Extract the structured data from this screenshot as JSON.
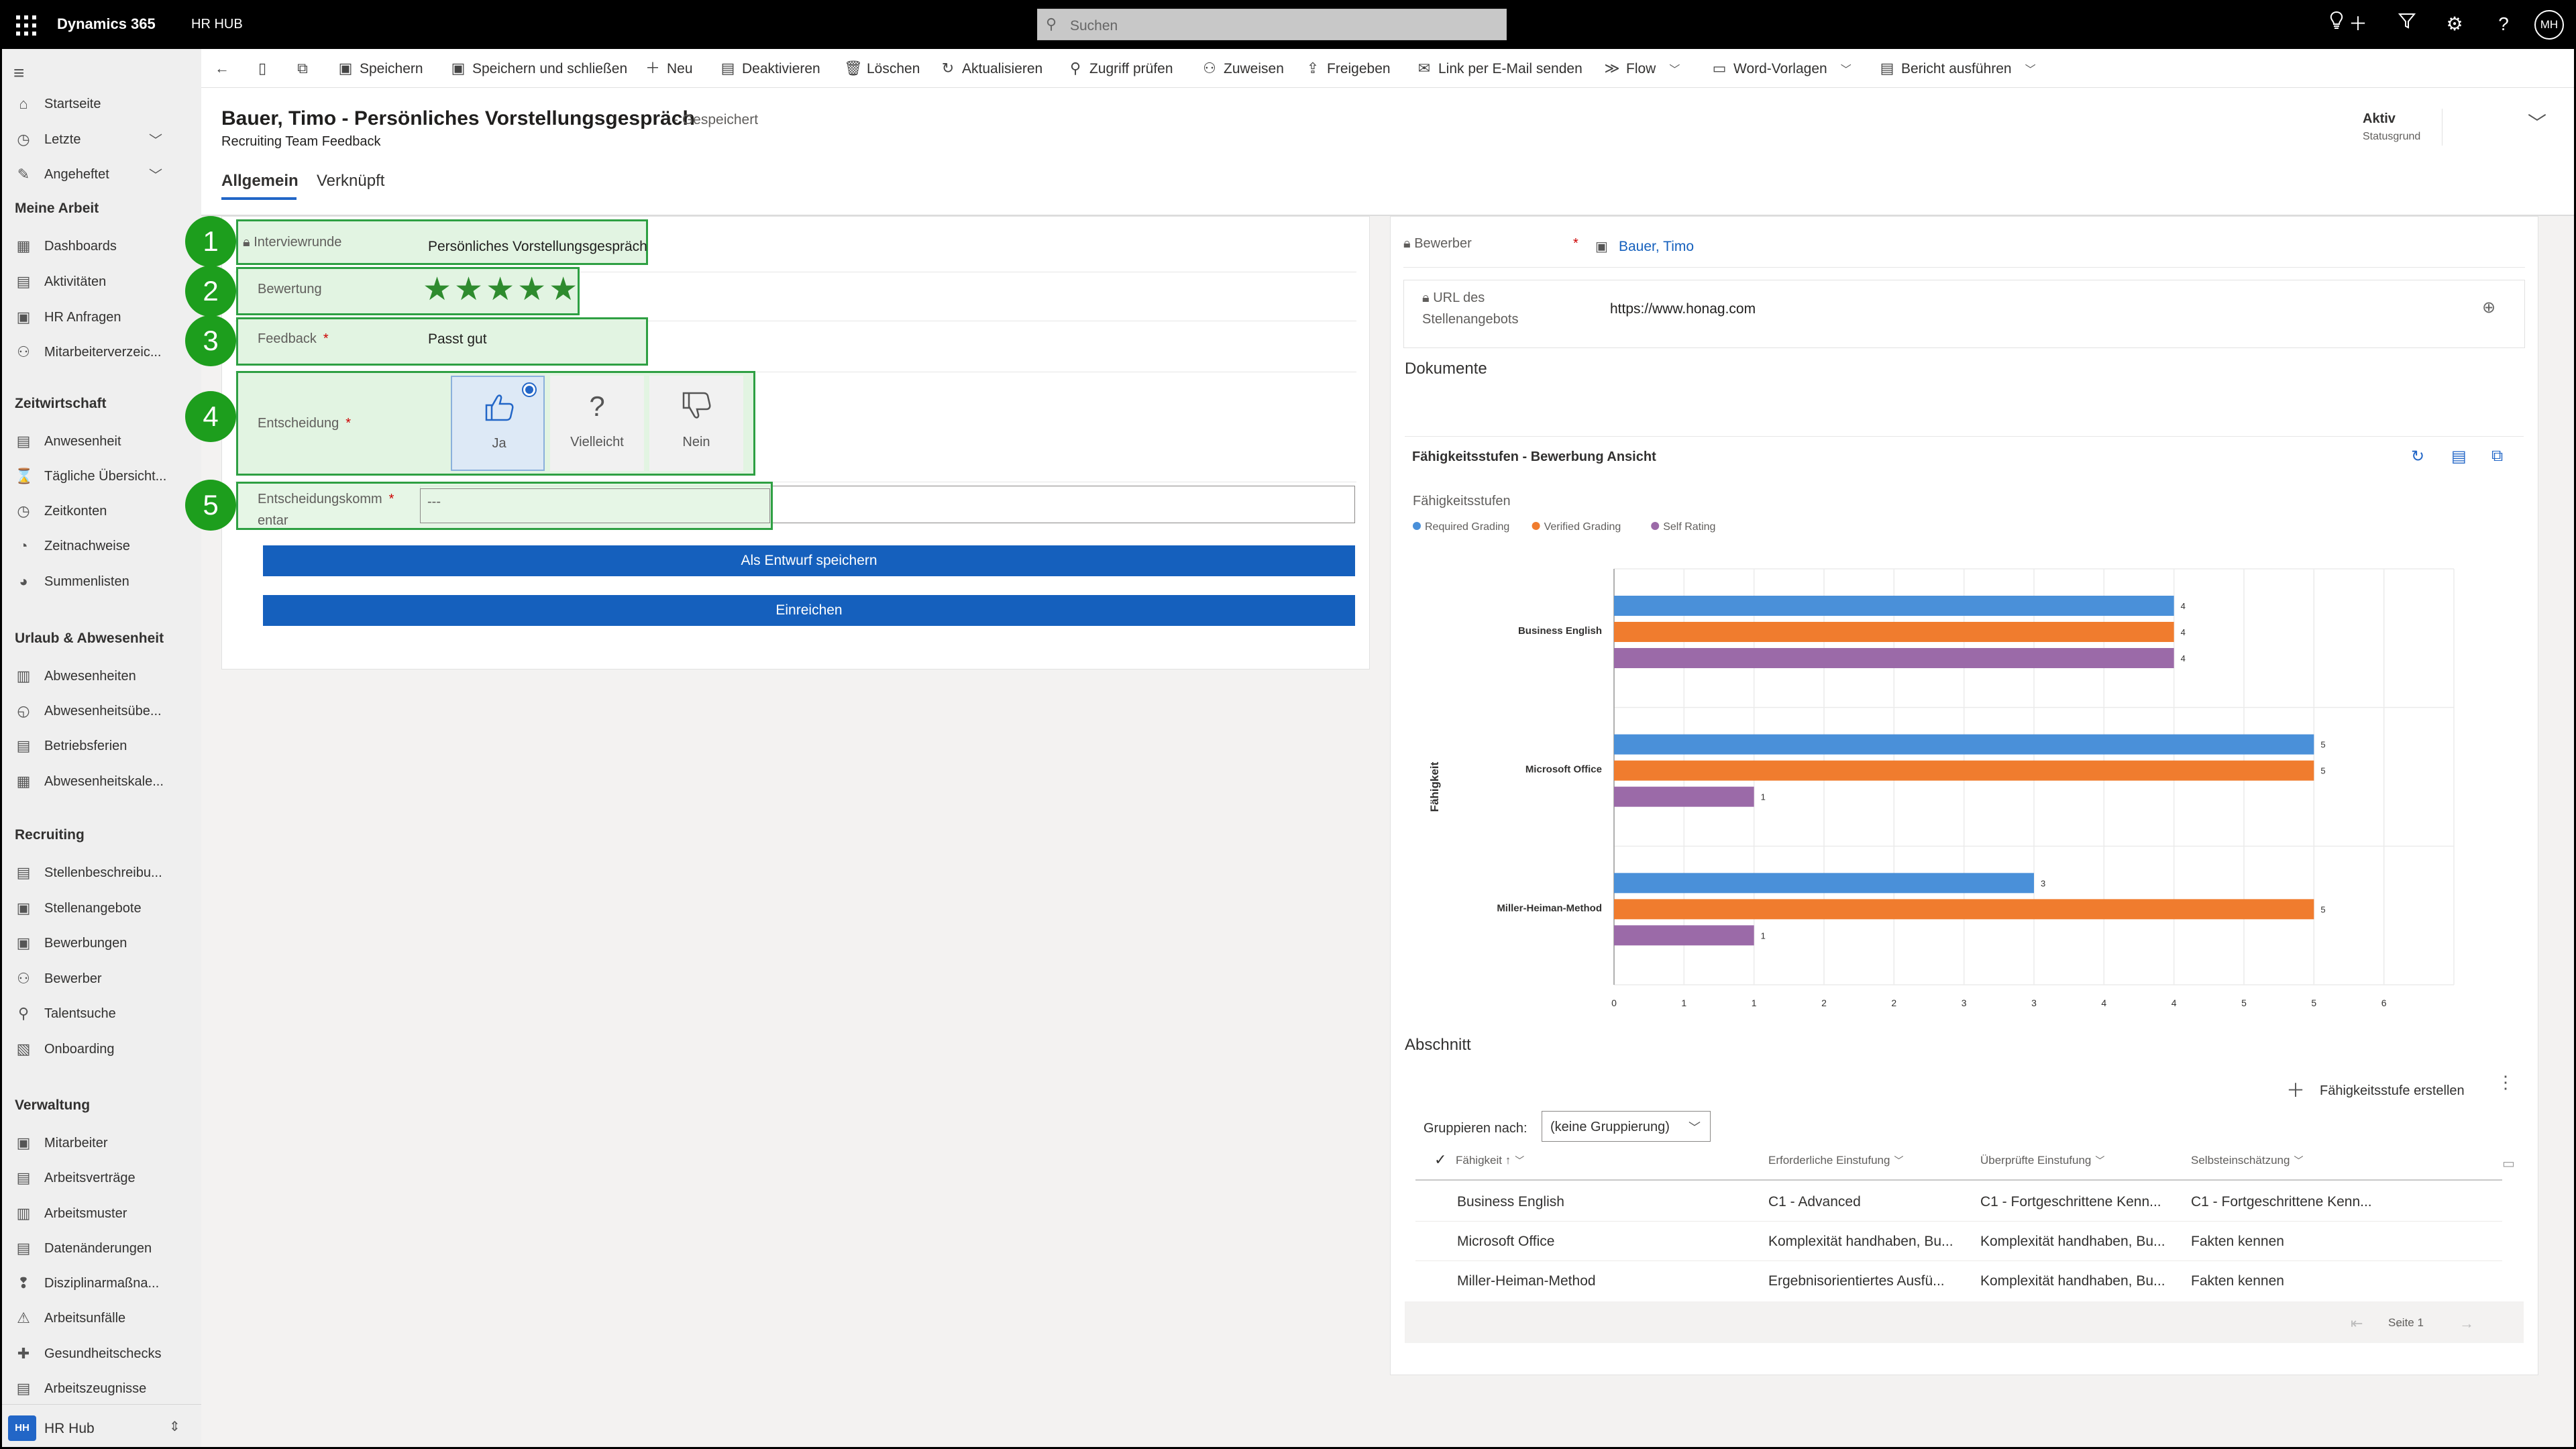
{
  "topbar": {
    "brand": "Dynamics 365",
    "app": "HR HUB",
    "search_placeholder": "Suchen",
    "user_initials": "MH",
    "icons": [
      "lightbulb-icon",
      "plus-icon",
      "filter-icon",
      "gear-icon",
      "help-icon"
    ]
  },
  "sidebar": {
    "top_items": [
      {
        "label": "Startseite",
        "icon": "home-icon"
      },
      {
        "label": "Letzte",
        "icon": "clock-icon",
        "expandable": true
      },
      {
        "label": "Angeheftet",
        "icon": "pin-icon",
        "expandable": true
      }
    ],
    "groups": [
      {
        "title": "Meine Arbeit",
        "items": [
          "Dashboards",
          "Aktivitäten",
          "HR Anfragen",
          "Mitarbeiterverzeic..."
        ]
      },
      {
        "title": "Zeitwirtschaft",
        "items": [
          "Anwesenheit",
          "Tägliche Übersicht...",
          "Zeitkonten",
          "Zeitnachweise",
          "Summenlisten"
        ]
      },
      {
        "title": "Urlaub & Abwesenheit",
        "items": [
          "Abwesenheiten",
          "Abwesenheitsübe...",
          "Betriebsferien",
          "Abwesenheitskale..."
        ]
      },
      {
        "title": "Recruiting",
        "items": [
          "Stellenbeschreibu...",
          "Stellenangebote",
          "Bewerbungen",
          "Bewerber",
          "Talentsuche",
          "Onboarding"
        ]
      },
      {
        "title": "Verwaltung",
        "items": [
          "Mitarbeiter",
          "Arbeitsverträge",
          "Arbeitsmuster",
          "Datenänderungen",
          "Disziplinarmaßna...",
          "Arbeitsunfälle",
          "Gesundheitschecks",
          "Arbeitszeugnisse"
        ]
      }
    ],
    "footer": {
      "initials": "HH",
      "label": "HR Hub"
    }
  },
  "commands": [
    {
      "label": "Speichern",
      "icon": "save-icon"
    },
    {
      "label": "Speichern und schließen",
      "icon": "save-close-icon"
    },
    {
      "label": "Neu",
      "icon": "plus-icon"
    },
    {
      "label": "Deaktivieren",
      "icon": "deactivate-icon"
    },
    {
      "label": "Löschen",
      "icon": "trash-icon"
    },
    {
      "label": "Aktualisieren",
      "icon": "refresh-icon"
    },
    {
      "label": "Zugriff prüfen",
      "icon": "search-icon"
    },
    {
      "label": "Zuweisen",
      "icon": "person-icon"
    },
    {
      "label": "Freigeben",
      "icon": "share-icon"
    },
    {
      "label": "Link per E-Mail senden",
      "icon": "mail-icon"
    },
    {
      "label": "Flow",
      "icon": "flow-icon"
    },
    {
      "label": "Word-Vorlagen",
      "icon": "word-icon"
    },
    {
      "label": "Bericht ausführen",
      "icon": "report-icon"
    }
  ],
  "header": {
    "title": "Bauer, Timo  - Persönliches Vorstellungsgespräch",
    "saved": "- Gespeichert",
    "subtitle": "Recruiting Team Feedback",
    "status_value": "Aktiv",
    "status_label": "Statusgrund",
    "tabs": [
      "Allgemein",
      "Verknüpft"
    ]
  },
  "form": {
    "callouts": [
      "1",
      "2",
      "3",
      "4",
      "5"
    ],
    "interviewrunde": {
      "label": "Interviewrunde",
      "value": "Persönliches Vorstellungsgespräch"
    },
    "bewertung": {
      "label": "Bewertung",
      "stars": 5,
      "max": 5,
      "star_glyphs": "★★★★★"
    },
    "feedback": {
      "label": "Feedback",
      "value": "Passt gut"
    },
    "entscheidung": {
      "label": "Entscheidung",
      "options": [
        {
          "label": "Ja",
          "icon": "thumbs-up-icon",
          "selected": true
        },
        {
          "label": "Vielleicht",
          "icon": "question-icon",
          "selected": false
        },
        {
          "label": "Nein",
          "icon": "thumbs-down-icon",
          "selected": false
        }
      ]
    },
    "kommentar": {
      "label_line1": "Entscheidungskomm",
      "label_line2": "entar",
      "value": "---"
    },
    "required_mark": "*",
    "buttons": {
      "draft": "Als Entwurf speichern",
      "submit": "Einreichen"
    }
  },
  "right": {
    "bewerber": {
      "label": "Bewerber",
      "value": "Bauer, Timo"
    },
    "url": {
      "label_line1": "URL des",
      "label_line2": "Stellenangebots",
      "value": "https://www.honag.com"
    },
    "dokumente_title": "Dokumente",
    "abschnitt_title": "Abschnitt",
    "add_label": "Fähigkeitsstufe erstellen",
    "group_by_label": "Gruppieren nach:",
    "group_by_value": "(keine Gruppierung)",
    "table": {
      "columns": [
        "Fähigkeit",
        "Erforderliche Einstufung",
        "Überprüfte Einstufung",
        "Selbsteinschätzung"
      ],
      "rows": [
        [
          "Business English",
          "C1 - Advanced",
          "C1 - Fortgeschrittene Kenn...",
          "C1 - Fortgeschrittene Kenn..."
        ],
        [
          "Microsoft Office",
          "Komplexität handhaben, Bu...",
          "Komplexität handhaben, Bu...",
          "Fakten kennen"
        ],
        [
          "Miller-Heiman-Method",
          "Ergebnisorientiertes Ausfü...",
          "Komplexität handhaben, Bu...",
          "Fakten kennen"
        ]
      ],
      "page_label": "Seite 1"
    }
  },
  "chart_data": {
    "type": "bar",
    "orientation": "horizontal",
    "view_title": "Fähigkeitsstufen - Bewerbung Ansicht",
    "title": "Fähigkeitsstufen",
    "ylabel": "Fähigkeit",
    "xlabel": "",
    "categories": [
      "Business English",
      "Microsoft Office",
      "Miller-Heiman-Method"
    ],
    "series": [
      {
        "name": "Required Grading",
        "color": "#4a90d9",
        "values": [
          4,
          5,
          3
        ]
      },
      {
        "name": "Verified Grading",
        "color": "#f07c2e",
        "values": [
          4,
          5,
          5
        ]
      },
      {
        "name": "Self Rating",
        "color": "#9b6aa8",
        "values": [
          4,
          1,
          1
        ]
      }
    ],
    "xlim": [
      0,
      6
    ],
    "x_ticks": [
      "0",
      "1",
      "1",
      "2",
      "2",
      "3",
      "3",
      "4",
      "4",
      "5",
      "5",
      "6"
    ],
    "grid": true,
    "legend_position": "top-left"
  }
}
